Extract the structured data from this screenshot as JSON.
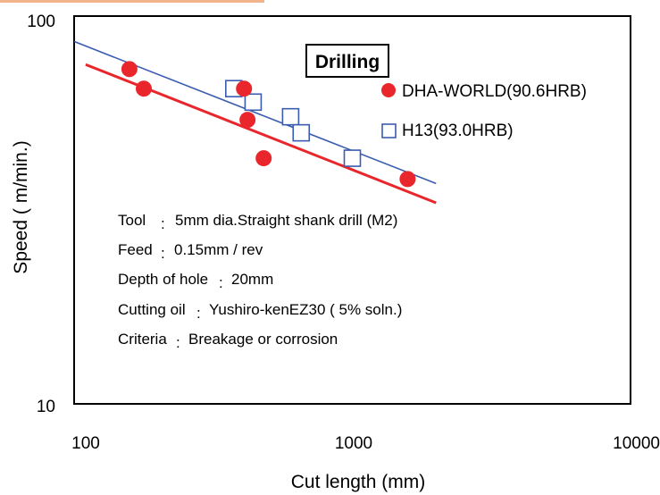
{
  "chart_data": {
    "type": "scatter",
    "title": "Drilling",
    "xlabel": "Cut length (mm)",
    "ylabel": "Speed ( m/min.)",
    "x_scale": "log",
    "y_scale": "log",
    "xlim": [
      100,
      10000
    ],
    "ylim": [
      10,
      100
    ],
    "x_tick_labels": [
      "100",
      "1000",
      "10000"
    ],
    "y_tick_labels": [
      "10",
      "100"
    ],
    "legend_position": "top-right",
    "grid": false,
    "series": [
      {
        "name": "DHA-WORLD(90.6HRB)",
        "marker": "circle",
        "color": "#e8262b",
        "points": [
          [
            158,
            73
          ],
          [
            178,
            65
          ],
          [
            408,
            65
          ],
          [
            420,
            54
          ],
          [
            480,
            43
          ],
          [
            1580,
            38
          ]
        ],
        "trend": [
          [
            110,
            75
          ],
          [
            2000,
            33
          ]
        ]
      },
      {
        "name": "H13(93.0HRB)",
        "marker": "square",
        "color": "#3b5bb0",
        "points": [
          [
            375,
            65
          ],
          [
            440,
            60
          ],
          [
            600,
            55
          ],
          [
            655,
            50
          ],
          [
            1000,
            43
          ]
        ],
        "trend": [
          [
            100,
            86
          ],
          [
            2000,
            37
          ]
        ]
      }
    ],
    "annotations": [
      {
        "label": "Tool",
        "sep": ":",
        "text": "5mm dia.Straight shank drill (M2)"
      },
      {
        "label": "Feed",
        "sep": ":",
        "text": "0.15mm / rev"
      },
      {
        "label": "Depth of hole",
        "sep": ":",
        "text": "20mm"
      },
      {
        "label": "Cutting oil",
        "sep": ":",
        "text": "Yushiro-kenEZ30 ( 5% soln.)"
      },
      {
        "label": "Criteria",
        "sep": ":",
        "text": "Breakage or corrosion"
      }
    ]
  }
}
